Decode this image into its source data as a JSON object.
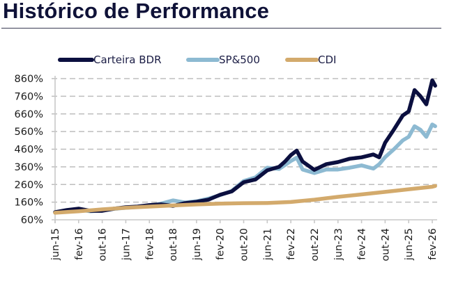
{
  "header": {
    "title": "Histórico de Performance"
  },
  "chart_data": {
    "type": "line",
    "title": "Histórico de Performance",
    "xlabel": "",
    "ylabel": "",
    "ylim": [
      60,
      860
    ],
    "yticks": [
      60,
      160,
      260,
      360,
      460,
      560,
      660,
      760,
      860
    ],
    "ytick_labels": [
      "60%",
      "160%",
      "260%",
      "360%",
      "460%",
      "560%",
      "660%",
      "760%",
      "860%"
    ],
    "xlim_months": [
      0,
      129
    ],
    "xticks_months": [
      0,
      8,
      16,
      24,
      32,
      40,
      48,
      56,
      64,
      72,
      80,
      88,
      96,
      104,
      112,
      120,
      128
    ],
    "xtick_labels": [
      "jun-15",
      "fev-16",
      "out-16",
      "jun-17",
      "fev-18",
      "out-18",
      "jun-19",
      "fev-20",
      "out-20",
      "jun-21",
      "fev-22",
      "out-22",
      "jun-23",
      "fev-24",
      "out-24",
      "jun-25",
      "fev-26"
    ],
    "x_unit": "months since jun-15",
    "grid": "horizontal dashed",
    "legend_position": "top-center",
    "series": [
      {
        "name": "Carteira BDR",
        "color": "#0b0f3f",
        "x": [
          0,
          4,
          8,
          12,
          16,
          20,
          24,
          28,
          32,
          36,
          40,
          44,
          48,
          52,
          56,
          60,
          64,
          68,
          72,
          76,
          78,
          80,
          82,
          84,
          88,
          92,
          96,
          100,
          104,
          108,
          110,
          112,
          115,
          118,
          120,
          122,
          124,
          126,
          128,
          129
        ],
        "values": [
          103,
          115,
          123,
          111,
          111,
          123,
          131,
          135,
          143,
          147,
          139,
          154,
          162,
          174,
          202,
          221,
          273,
          288,
          340,
          360,
          390,
          426,
          452,
          390,
          343,
          375,
          387,
          406,
          414,
          430,
          414,
          497,
          572,
          651,
          674,
          795,
          760,
          714,
          850,
          820
        ]
      },
      {
        "name": "SP&500",
        "color": "#8dbad2",
        "x": [
          0,
          4,
          8,
          12,
          16,
          20,
          24,
          28,
          32,
          36,
          40,
          44,
          48,
          52,
          56,
          60,
          64,
          68,
          72,
          76,
          78,
          80,
          82,
          84,
          88,
          92,
          96,
          100,
          104,
          108,
          110,
          112,
          115,
          118,
          120,
          122,
          124,
          126,
          128,
          129
        ],
        "values": [
          103,
          112,
          118,
          108,
          113,
          122,
          128,
          133,
          140,
          152,
          170,
          158,
          165,
          180,
          200,
          224,
          280,
          300,
          355,
          348,
          370,
          393,
          412,
          345,
          325,
          345,
          345,
          355,
          368,
          350,
          375,
          415,
          460,
          510,
          530,
          590,
          570,
          530,
          600,
          590
        ]
      },
      {
        "name": "CDI",
        "color": "#d3aa6c",
        "x": [
          0,
          8,
          16,
          24,
          32,
          40,
          48,
          56,
          64,
          72,
          80,
          88,
          96,
          104,
          112,
          120,
          128,
          129
        ],
        "values": [
          100,
          108,
          119,
          128,
          135,
          141,
          147,
          152,
          154,
          155,
          161,
          174,
          190,
          204,
          218,
          233,
          247,
          252
        ]
      }
    ]
  }
}
